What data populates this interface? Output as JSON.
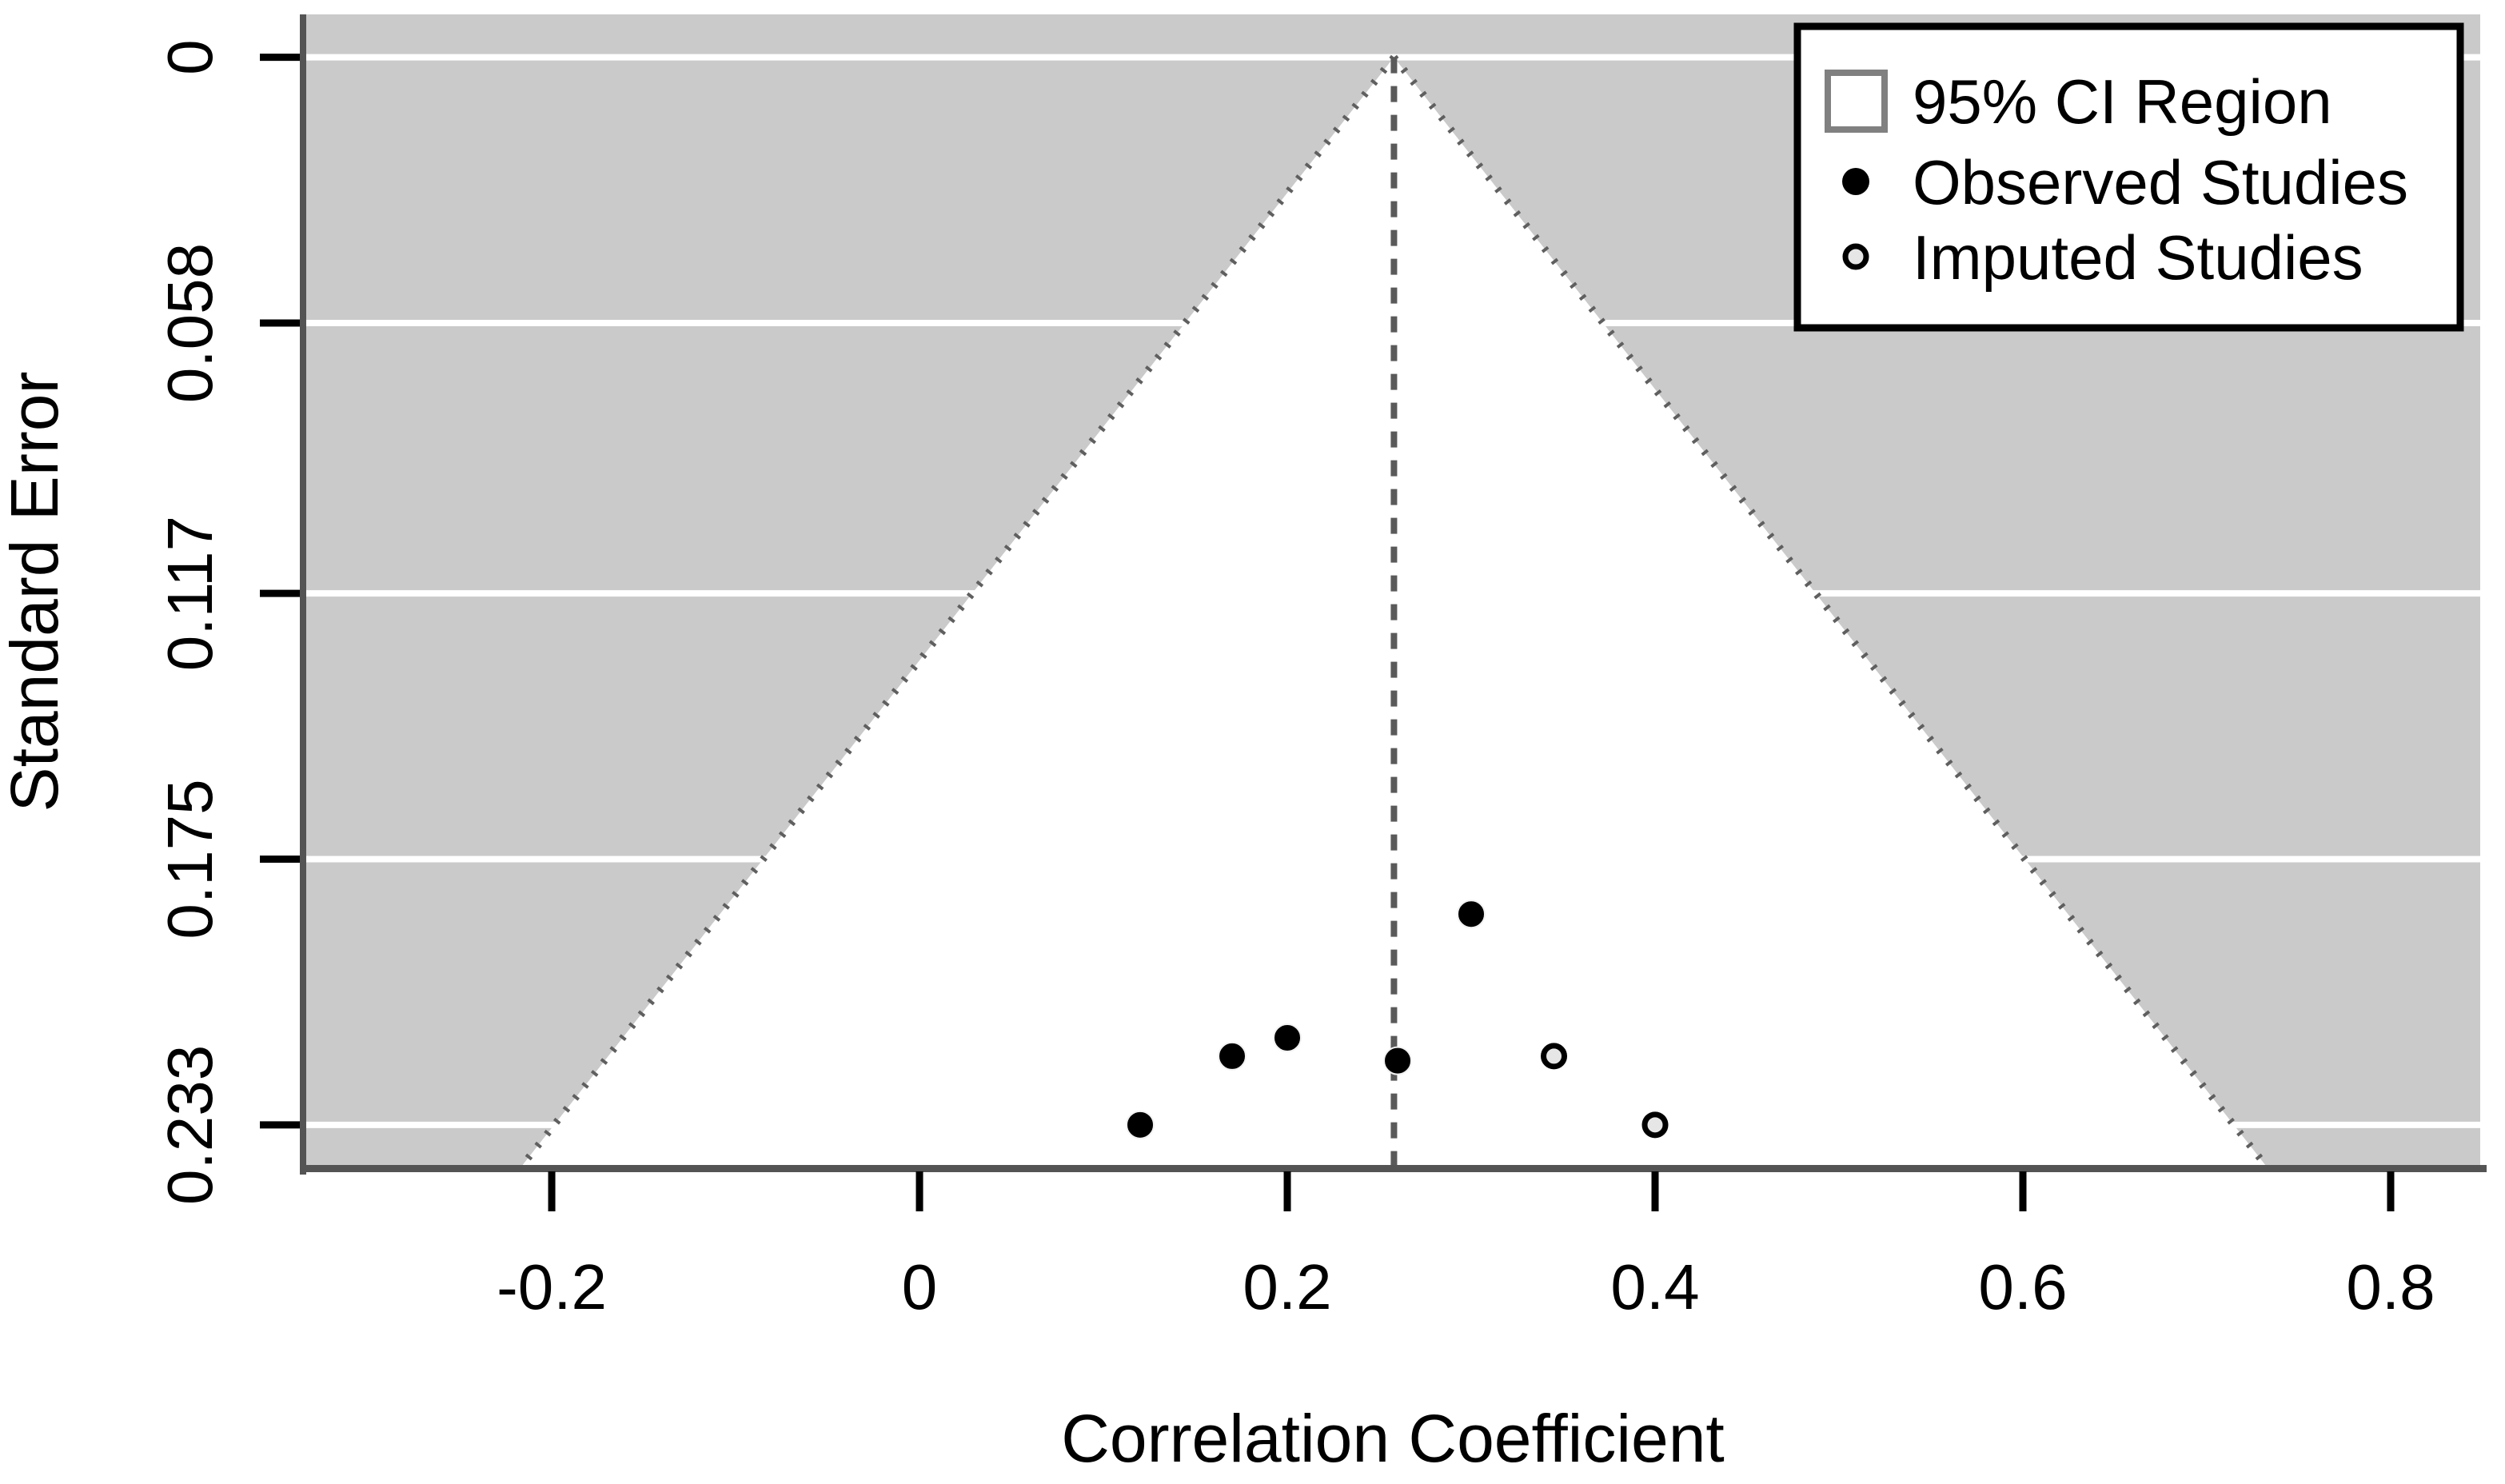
{
  "chart_data": {
    "type": "scatter",
    "subtype": "funnel-plot",
    "title": "",
    "xlabel": "Correlation Coefficient",
    "ylabel": "Standard Error",
    "x_ticks": [
      -0.2,
      0,
      0.2,
      0.4,
      0.6,
      0.8
    ],
    "x_tick_labels": [
      "-0.2",
      "0",
      "0.2",
      "0.4",
      "0.6",
      "0.8"
    ],
    "y_ticks": [
      0,
      0.058,
      0.117,
      0.175,
      0.233
    ],
    "y_tick_labels": [
      "0",
      "0.058",
      "0.117",
      "0.175",
      "0.233"
    ],
    "xlim": [
      -0.3335,
      0.8487
    ],
    "ylim": [
      -0.00935,
      0.24245
    ],
    "y_axis_inverted": true,
    "grid": "horizontal-white-lines-on-gray",
    "center_estimate": 0.258,
    "ci_multiplier": 1.96,
    "funnel": {
      "apex_x": 0.258,
      "apex_se": 0,
      "label": "95% CI Region"
    },
    "series": [
      {
        "name": "Observed Studies",
        "marker": "filled-circle",
        "points": [
          {
            "x": 0.3,
            "se": 0.187
          },
          {
            "x": 0.2,
            "se": 0.214
          },
          {
            "x": 0.17,
            "se": 0.218
          },
          {
            "x": 0.26,
            "se": 0.219
          },
          {
            "x": 0.12,
            "se": 0.233
          }
        ]
      },
      {
        "name": "Imputed Studies",
        "marker": "open-circle",
        "points": [
          {
            "x": 0.345,
            "se": 0.218
          },
          {
            "x": 0.4,
            "se": 0.233
          }
        ]
      }
    ],
    "legend": {
      "position": "top-right",
      "entries": [
        {
          "symbol": "open-square",
          "label": "95% CI Region"
        },
        {
          "symbol": "filled-circle",
          "label": "Observed Studies"
        },
        {
          "symbol": "open-circle",
          "label": "Imputed Studies"
        }
      ]
    },
    "colors": {
      "page_background": "#ffffff",
      "plot_background": "#cacaca",
      "funnel_fill": "#ffffff",
      "gridline": "#ffffff",
      "axis_line": "#545454",
      "tick_mark": "#000000",
      "dashed_center_line": "#5a5a5a",
      "funnel_edge_dotted": "#5f5f5f",
      "observed_marker": "#000000",
      "imputed_marker_fill": "#e6e6e6",
      "imputed_marker_ring": "#000000",
      "legend_border": "#000000",
      "legend_square_border": "#808080",
      "text": "#000000"
    }
  }
}
